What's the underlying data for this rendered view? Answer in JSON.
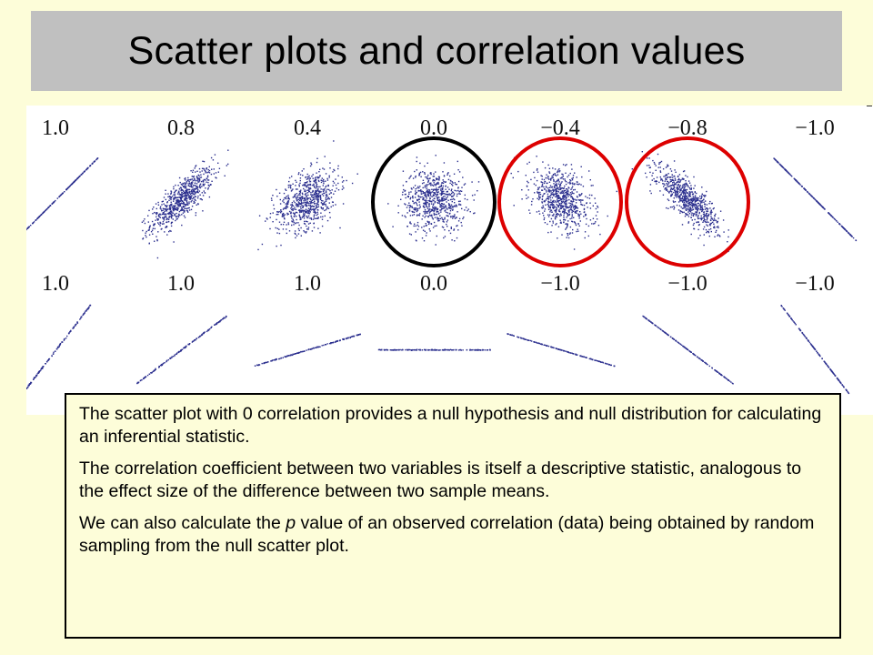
{
  "title": "Scatter plots and correlation values",
  "chart_data": {
    "type": "scatter",
    "rows": [
      {
        "panels": [
          {
            "label": "1.0",
            "r": 1.0,
            "shape": "cloud-line",
            "slope": 1
          },
          {
            "label": "0.8",
            "r": 0.8,
            "shape": "cloud"
          },
          {
            "label": "0.4",
            "r": 0.4,
            "shape": "cloud"
          },
          {
            "label": "0.0",
            "r": 0.0,
            "shape": "cloud",
            "highlight": "black-circle"
          },
          {
            "label": "−0.4",
            "r": -0.4,
            "shape": "cloud",
            "highlight": "red-circle"
          },
          {
            "label": "−0.8",
            "r": -0.8,
            "shape": "cloud",
            "highlight": "red-circle"
          },
          {
            "label": "−1.0",
            "r": -1.0,
            "shape": "cloud-line",
            "slope": -1
          }
        ]
      },
      {
        "panels": [
          {
            "label": "1.0",
            "r": 1.0,
            "shape": "line",
            "slope": 1.3
          },
          {
            "label": "1.0",
            "r": 1.0,
            "shape": "line",
            "slope": 0.75
          },
          {
            "label": "1.0",
            "r": 1.0,
            "shape": "line",
            "slope": 0.3
          },
          {
            "label": "0.0",
            "r": 0.0,
            "shape": "line",
            "slope": 0
          },
          {
            "label": "−1.0",
            "r": -1.0,
            "shape": "line",
            "slope": -0.3
          },
          {
            "label": "−1.0",
            "r": -1.0,
            "shape": "line",
            "slope": -0.75
          },
          {
            "label": "−1.0",
            "r": -1.0,
            "shape": "line",
            "slope": -1.3
          }
        ]
      }
    ],
    "point_color": "#2b2f8e",
    "highlight_colors": {
      "black-circle": "#000000",
      "red-circle": "#dd0000"
    }
  },
  "text_box": {
    "para1": "The scatter plot with 0 correlation provides a null hypothesis and null distribution for calculating an inferential statistic.",
    "para2": "The correlation coefficient between two variables is itself a descriptive statistic, analogous to the effect size of the difference between two sample means.",
    "para3_before": "We can also calculate the ",
    "para3_italic": "p",
    "para3_after": " value of an observed correlation (data) being obtained by random sampling from the null scatter plot."
  },
  "colors": {
    "background": "#fdfdd9",
    "title_bar": "#c0c0c0"
  }
}
